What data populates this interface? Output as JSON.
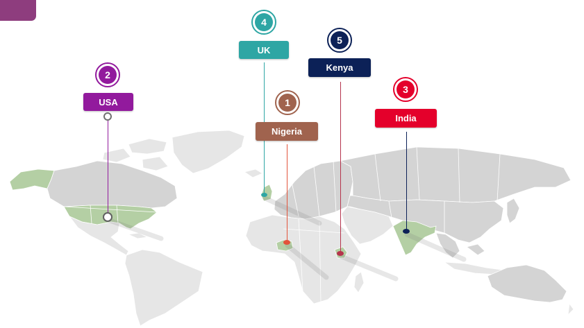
{
  "markers": [
    {
      "id": "usa",
      "rank": "2",
      "country": "USA",
      "color": "#921a9d"
    },
    {
      "id": "uk",
      "rank": "4",
      "country": "UK",
      "color": "#2ea6a4"
    },
    {
      "id": "kenya",
      "rank": "5",
      "country": "Kenya",
      "color": "#0c2157"
    },
    {
      "id": "nigeria",
      "rank": "1",
      "country": "Nigeria",
      "color": "#a0634e"
    },
    {
      "id": "india",
      "rank": "3",
      "country": "India",
      "color": "#e4002b"
    }
  ],
  "highlighted_countries": [
    "USA",
    "UK",
    "Kenya",
    "Nigeria",
    "India"
  ],
  "highlight_color": "#b4cfa4"
}
